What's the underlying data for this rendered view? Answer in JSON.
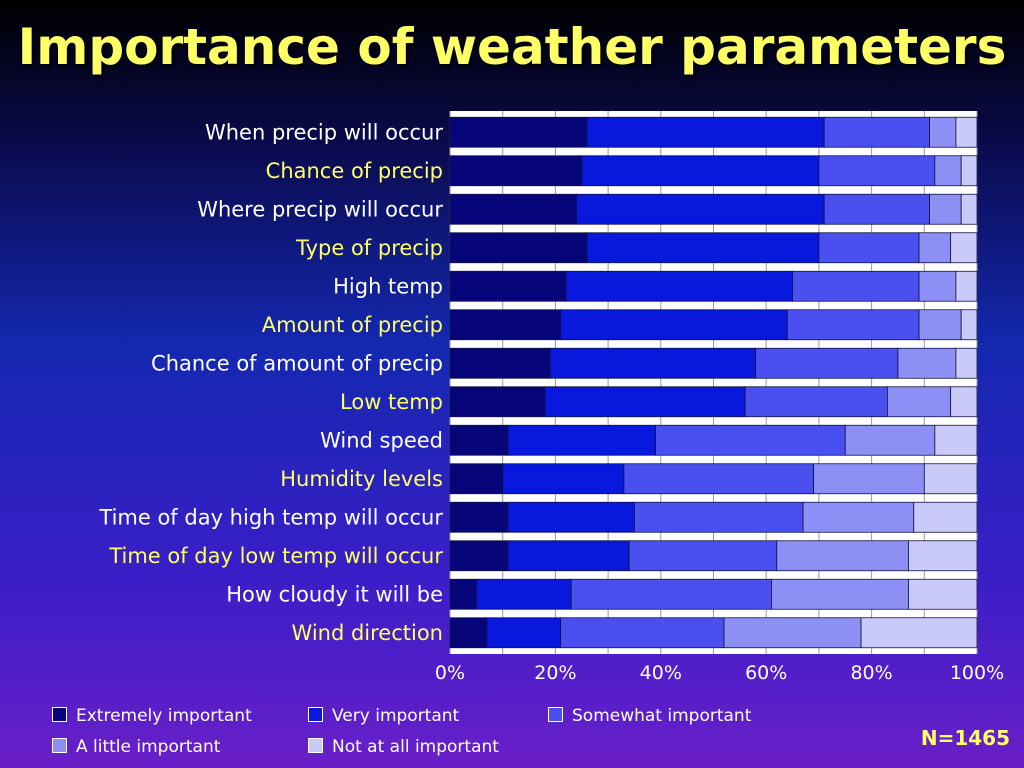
{
  "title": "Importance of weather parameters",
  "n_label": "N=1465",
  "colors": {
    "extremely": "#06067a",
    "very": "#0818dc",
    "somewhat": "#4a50f0",
    "little": "#8c90f4",
    "not_at_all": "#cacaf8",
    "label_white": "#ffffff",
    "label_yellow": "#ffff66"
  },
  "chart_data": {
    "type": "bar",
    "orientation": "horizontal",
    "stacked": "percent",
    "categories": [
      "When precip will occur",
      "Chance of precip",
      "Where precip will occur",
      "Type of precip",
      "High temp",
      "Amount of precip",
      "Chance of amount of precip",
      "Low temp",
      "Wind speed",
      "Humidity levels",
      "Time of day high temp will occur",
      "Time of day low temp will occur",
      "How cloudy it will be",
      "Wind direction"
    ],
    "series": [
      {
        "name": "Extremely important",
        "values": [
          26,
          25,
          24,
          26,
          22,
          21,
          19,
          18,
          11,
          10,
          11,
          11,
          5,
          7
        ]
      },
      {
        "name": "Very important",
        "values": [
          45,
          45,
          47,
          44,
          43,
          43,
          39,
          38,
          28,
          23,
          24,
          23,
          18,
          14
        ]
      },
      {
        "name": "Somewhat important",
        "values": [
          20,
          22,
          20,
          19,
          24,
          25,
          27,
          27,
          36,
          36,
          32,
          28,
          38,
          31
        ]
      },
      {
        "name": "A little important",
        "values": [
          5,
          5,
          6,
          6,
          7,
          8,
          11,
          12,
          17,
          21,
          21,
          25,
          26,
          26
        ]
      },
      {
        "name": "Not at all important",
        "values": [
          4,
          3,
          3,
          5,
          4,
          3,
          4,
          5,
          8,
          10,
          12,
          13,
          13,
          22
        ]
      }
    ],
    "xlim": [
      0,
      100
    ],
    "xticks": [
      "0%",
      "20%",
      "40%",
      "60%",
      "80%",
      "100%"
    ],
    "grid": "vertical",
    "legend_position": "bottom-left"
  }
}
